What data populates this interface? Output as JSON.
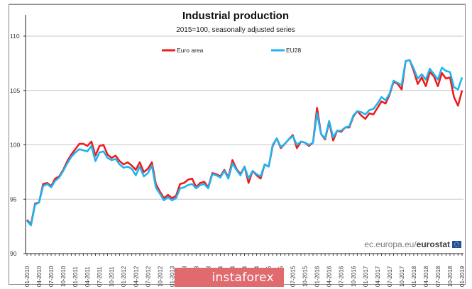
{
  "chart_data": {
    "type": "line",
    "title": "Industrial production",
    "subtitle": "2015=100, seasonally adjusted series",
    "xlabel": "",
    "ylabel": "",
    "ylim": [
      90,
      110
    ],
    "yticks": [
      90,
      95,
      100,
      105,
      110
    ],
    "ytick_labels": [
      "90",
      "95",
      "100",
      "105",
      "110"
    ],
    "grid": true,
    "legend_position": "top",
    "x_start": "01-2010",
    "x_end": "01-2019",
    "x_frequency": "monthly",
    "xtick_labels": [
      "01-2010",
      "04-2010",
      "07-2010",
      "10-2010",
      "01-2011",
      "04-2011",
      "07-2011",
      "10-2011",
      "01-2012",
      "04-2012",
      "07-2012",
      "10-2012",
      "01-2013",
      "04-2013",
      "07-2013",
      "10-2013",
      "01-2014",
      "04-2014",
      "07-2014",
      "10-2014",
      "01-2015",
      "04-2015",
      "07-2015",
      "10-2015",
      "01-2016",
      "04-2016",
      "07-2016",
      "10-2016",
      "01-2017",
      "04-2017",
      "07-2017",
      "10-2017",
      "01-2018",
      "04-2018",
      "07-2018",
      "10-2018",
      "01-2019"
    ],
    "series": [
      {
        "name": "Euro area",
        "color": "#ee1c1c",
        "values": [
          93.1,
          92.7,
          94.6,
          94.7,
          96.4,
          96.5,
          96.2,
          96.9,
          97.1,
          97.7,
          98.5,
          99.1,
          99.6,
          100.1,
          100.1,
          99.9,
          100.3,
          99.0,
          99.9,
          100.0,
          99.1,
          98.8,
          99.0,
          98.5,
          98.2,
          98.4,
          98.1,
          97.7,
          98.4,
          97.5,
          97.8,
          98.4,
          96.4,
          95.7,
          95.1,
          95.4,
          95.1,
          95.3,
          96.4,
          96.5,
          96.8,
          96.9,
          96.1,
          96.5,
          96.6,
          96.1,
          97.4,
          97.3,
          97.1,
          97.7,
          97.0,
          98.6,
          97.8,
          97.3,
          98.0,
          96.5,
          97.6,
          97.2,
          96.9,
          98.2,
          98.0,
          99.9,
          100.6,
          99.7,
          100.1,
          100.5,
          100.9,
          99.7,
          100.3,
          100.2,
          99.9,
          100.2,
          103.4,
          101.0,
          100.5,
          102.1,
          100.4,
          101.3,
          101.2,
          101.6,
          101.6,
          102.6,
          103.1,
          102.7,
          102.4,
          102.9,
          102.8,
          103.4,
          104.0,
          103.8,
          104.6,
          105.8,
          105.6,
          105.1,
          107.7,
          107.8,
          106.8,
          105.6,
          106.2,
          105.4,
          106.7,
          106.3,
          105.4,
          106.6,
          106.1,
          106.2,
          104.4,
          103.6,
          105.0
        ]
      },
      {
        "name": "EU28",
        "color": "#1eb4f0",
        "values": [
          93.0,
          92.6,
          94.5,
          94.7,
          96.2,
          96.4,
          96.1,
          96.7,
          97.0,
          97.6,
          98.3,
          98.9,
          99.3,
          99.6,
          99.5,
          99.4,
          99.9,
          98.5,
          99.3,
          99.4,
          98.8,
          98.6,
          98.7,
          98.2,
          97.9,
          98.0,
          97.8,
          97.2,
          98.0,
          97.1,
          97.4,
          98.1,
          96.1,
          95.5,
          94.9,
          95.2,
          94.9,
          95.1,
          96.0,
          96.1,
          96.3,
          96.4,
          96.0,
          96.3,
          96.4,
          96.0,
          97.3,
          97.2,
          97.0,
          97.6,
          96.9,
          98.3,
          97.7,
          97.2,
          98.0,
          96.9,
          97.6,
          97.3,
          97.1,
          98.2,
          98.0,
          100.0,
          100.6,
          99.8,
          100.1,
          100.5,
          100.8,
          100.0,
          100.3,
          100.2,
          100.0,
          100.2,
          102.9,
          101.0,
          100.6,
          102.2,
          100.7,
          101.3,
          101.3,
          101.6,
          101.7,
          102.7,
          103.1,
          103.0,
          102.8,
          103.2,
          103.3,
          103.8,
          104.4,
          104.1,
          104.7,
          105.9,
          105.7,
          105.5,
          107.7,
          107.8,
          107.0,
          106.1,
          106.5,
          106.0,
          107.0,
          106.5,
          106.0,
          107.1,
          106.8,
          106.7,
          105.3,
          105.1,
          106.2
        ]
      }
    ],
    "source": {
      "prefix": "ec.europa.eu/",
      "brand": "eurostat"
    }
  },
  "watermark": {
    "text": "instaforex",
    "color": "#e06a6e"
  }
}
